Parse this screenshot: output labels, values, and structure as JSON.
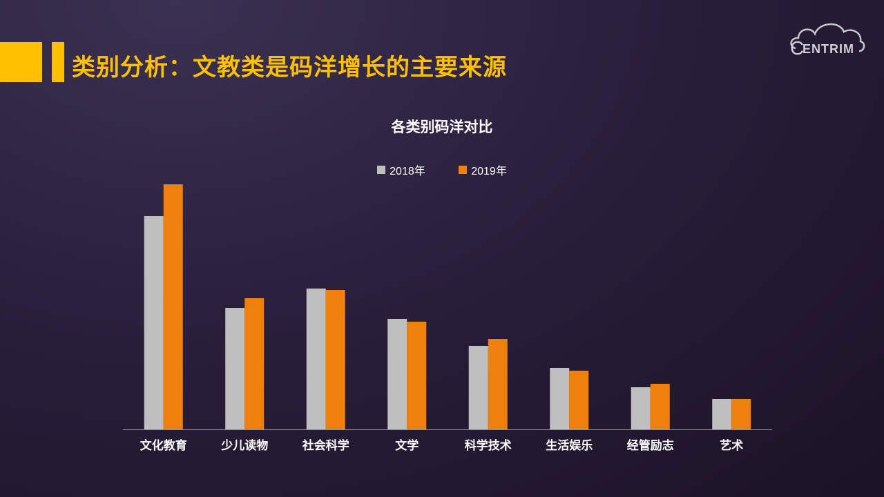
{
  "slide": {
    "title": "类别分析：文教类是码洋增长的主要来源",
    "logo_text": "ENTRIM"
  },
  "colors": {
    "accent": "#ffc000",
    "series_2018": "#bfbfbf",
    "series_2019": "#f0800e",
    "axis": "#8c8c99"
  },
  "chart_data": {
    "type": "bar",
    "title": "各类别码洋对比",
    "categories": [
      "文化教育",
      "少儿读物",
      "社会科学",
      "文学",
      "科学技术",
      "生活娱乐",
      "经管励志",
      "艺术"
    ],
    "series": [
      {
        "name": "2018年",
        "values": [
          30.9,
          17.6,
          20.4,
          16.0,
          12.1,
          8.9,
          6.1,
          4.4
        ]
      },
      {
        "name": "2019年",
        "values": [
          35.5,
          19.0,
          20.2,
          15.6,
          13.1,
          8.5,
          6.6,
          4.4
        ]
      }
    ],
    "ylim": [
      0,
      40
    ],
    "xlabel": "",
    "ylabel": "",
    "grid": false,
    "legend_position": "top"
  }
}
